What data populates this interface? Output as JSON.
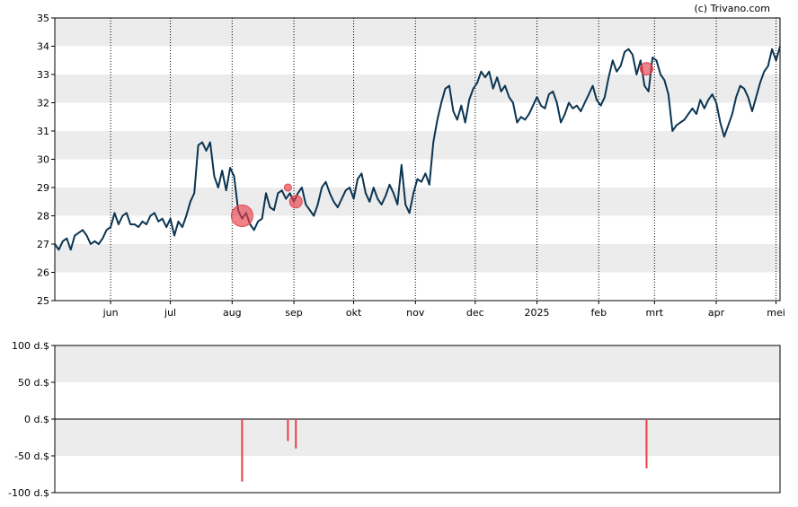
{
  "credit": "(c) Trivano.com",
  "colors": {
    "line": "#0b3552",
    "band": "#ececec",
    "marker": "#e8404a",
    "axis": "#000000",
    "grid": "#000000"
  },
  "chart_data": [
    {
      "type": "line",
      "title": "",
      "ylim": [
        25,
        35
      ],
      "y_ticks": [
        "25",
        "26",
        "27",
        "28",
        "29",
        "30",
        "31",
        "32",
        "33",
        "34",
        "35"
      ],
      "x_range_days": [
        0,
        364
      ],
      "x_ticks": [
        {
          "label": "jun",
          "day": 28
        },
        {
          "label": "jul",
          "day": 58
        },
        {
          "label": "aug",
          "day": 89
        },
        {
          "label": "sep",
          "day": 120
        },
        {
          "label": "okt",
          "day": 150
        },
        {
          "label": "nov",
          "day": 181
        },
        {
          "label": "dec",
          "day": 211
        },
        {
          "label": "2025",
          "day": 242
        },
        {
          "label": "feb",
          "day": 273
        },
        {
          "label": "mrt",
          "day": 301
        },
        {
          "label": "apr",
          "day": 332
        },
        {
          "label": "mei",
          "day": 362
        }
      ],
      "grid": "vertical dotted at month ticks, alternating horizontal bands",
      "series": [
        {
          "x": [
            0,
            2,
            4,
            6,
            8,
            10,
            12,
            14,
            16,
            18,
            20,
            22,
            24,
            26,
            28,
            30,
            32,
            34,
            36,
            38,
            40,
            42,
            44,
            46,
            48,
            50,
            52,
            54,
            56,
            58,
            60,
            62,
            64,
            66,
            68,
            70,
            72,
            74,
            76,
            78,
            80,
            82,
            84,
            86,
            88,
            90,
            92,
            94,
            96,
            98,
            100,
            102,
            104,
            106,
            108,
            110,
            112,
            114,
            116,
            118,
            120,
            122,
            124,
            126,
            128,
            130,
            132,
            134,
            136,
            138,
            140,
            142,
            144,
            146,
            148,
            150,
            152,
            154,
            156,
            158,
            160,
            162,
            164,
            166,
            168,
            170,
            172,
            174,
            176,
            178,
            180,
            182,
            184,
            186,
            188,
            190,
            192,
            194,
            196,
            198,
            200,
            202,
            204,
            206,
            208,
            210,
            212,
            214,
            216,
            218,
            220,
            222,
            224,
            226,
            228,
            230,
            232,
            234,
            236,
            238,
            240,
            242,
            244,
            246,
            248,
            250,
            252,
            254,
            256,
            258,
            260,
            262,
            264,
            266,
            268,
            270,
            272,
            274,
            276,
            278,
            280,
            282,
            284,
            286,
            288,
            290,
            292,
            294,
            296,
            298,
            300,
            302,
            304,
            306,
            308,
            310,
            312,
            314,
            316,
            318,
            320,
            322,
            324,
            326,
            328,
            330,
            332,
            334,
            336,
            338,
            340,
            342,
            344,
            346,
            348,
            350,
            352,
            354,
            356,
            358,
            360,
            362,
            364
          ],
          "y": [
            27.0,
            26.8,
            27.1,
            27.2,
            26.8,
            27.3,
            27.4,
            27.5,
            27.3,
            27.0,
            27.1,
            27.0,
            27.2,
            27.5,
            27.6,
            28.1,
            27.7,
            28.0,
            28.1,
            27.7,
            27.7,
            27.6,
            27.8,
            27.7,
            28.0,
            28.1,
            27.8,
            27.9,
            27.6,
            27.9,
            27.3,
            27.8,
            27.6,
            28.0,
            28.5,
            28.8,
            30.5,
            30.6,
            30.3,
            30.6,
            29.4,
            29.0,
            29.6,
            28.9,
            29.7,
            29.4,
            28.2,
            27.9,
            28.1,
            27.7,
            27.5,
            27.8,
            27.9,
            28.8,
            28.3,
            28.2,
            28.8,
            28.9,
            28.6,
            28.8,
            28.5,
            28.8,
            29.0,
            28.4,
            28.2,
            28.0,
            28.4,
            29.0,
            29.2,
            28.8,
            28.5,
            28.3,
            28.6,
            28.9,
            29.0,
            28.6,
            29.3,
            29.5,
            28.8,
            28.5,
            29.0,
            28.6,
            28.4,
            28.7,
            29.1,
            28.8,
            28.4,
            29.8,
            28.4,
            28.1,
            28.8,
            29.3,
            29.2,
            29.5,
            29.1,
            30.6,
            31.4,
            32.0,
            32.5,
            32.6,
            31.7,
            31.4,
            31.9,
            31.3,
            32.1,
            32.5,
            32.7,
            33.1,
            32.9,
            33.1,
            32.5,
            32.9,
            32.4,
            32.6,
            32.2,
            32.0,
            31.3,
            31.5,
            31.4,
            31.6,
            31.9,
            32.2,
            31.9,
            31.8,
            32.3,
            32.4,
            32.0,
            31.3,
            31.6,
            32.0,
            31.8,
            31.9,
            31.7,
            32.0,
            32.3,
            32.6,
            32.1,
            31.9,
            32.2,
            32.9,
            33.5,
            33.1,
            33.3,
            33.8,
            33.9,
            33.7,
            33.0,
            33.5,
            32.6,
            32.4,
            33.6,
            33.5,
            33.0,
            32.8,
            32.3,
            31.0,
            31.2,
            31.3,
            31.4,
            31.6,
            31.8,
            31.6,
            32.1,
            31.8,
            32.1,
            32.3,
            32.0,
            31.3,
            30.8,
            31.2,
            31.6,
            32.2,
            32.6,
            32.5,
            32.2,
            31.7,
            32.2,
            32.7,
            33.1,
            33.3,
            33.9,
            33.5,
            34.0
          ],
          "name": ""
        }
      ],
      "trade_markers": [
        {
          "day": 94,
          "value": 28.0,
          "size": "large"
        },
        {
          "day": 117,
          "value": 29.0,
          "size": "small"
        },
        {
          "day": 121,
          "value": 28.5,
          "size": "medium"
        },
        {
          "day": 297,
          "value": 33.2,
          "size": "medium"
        }
      ]
    },
    {
      "type": "bar",
      "title": "",
      "ylim": [
        -100,
        100
      ],
      "y_ticks": [
        "100 d.$",
        "50 d.$",
        "0 d.$",
        "-50 d.$",
        "-100 d.$"
      ],
      "x_range_days": [
        0,
        364
      ],
      "series": [
        {
          "x": [
            94,
            117,
            121,
            297
          ],
          "values": [
            -85,
            -30,
            -40,
            -67
          ]
        }
      ]
    }
  ]
}
